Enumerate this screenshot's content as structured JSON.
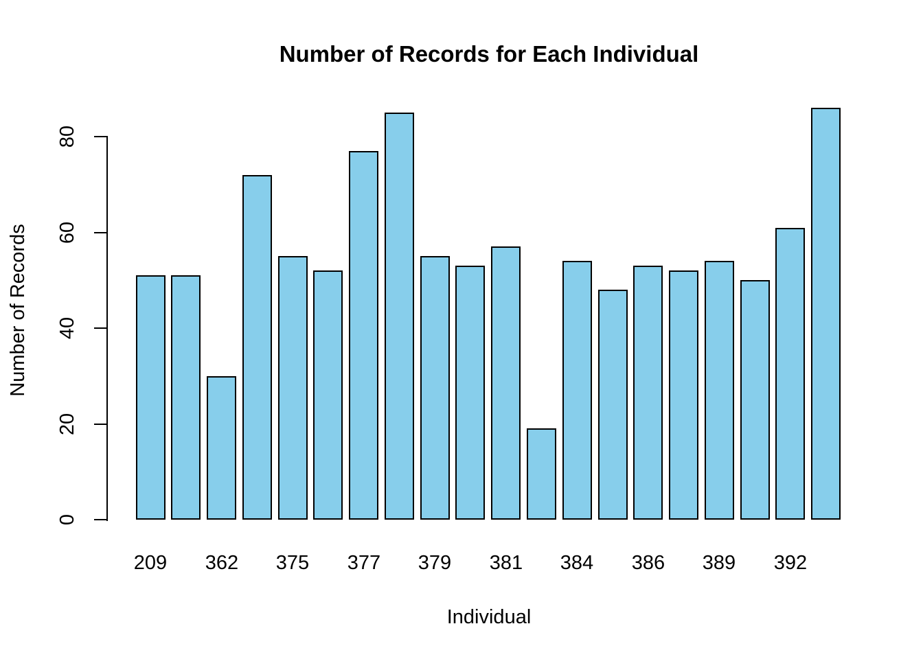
{
  "chart_data": {
    "type": "bar",
    "title": "Number of Records for Each Individual",
    "xlabel": "Individual",
    "ylabel": "Number of Records",
    "categories": [
      "209",
      "",
      "362",
      "",
      "375",
      "",
      "377",
      "",
      "379",
      "",
      "381",
      "",
      "384",
      "",
      "386",
      "",
      "389",
      "",
      "392",
      ""
    ],
    "visible_x_tick_labels": [
      "209",
      "362",
      "375",
      "377",
      "379",
      "381",
      "384",
      "386",
      "389",
      "392"
    ],
    "values": [
      51,
      51,
      30,
      72,
      55,
      52,
      77,
      85,
      55,
      53,
      57,
      19,
      54,
      48,
      53,
      52,
      54,
      50,
      61,
      86
    ],
    "y_ticks": [
      0,
      20,
      40,
      60,
      80
    ],
    "ylim": [
      0,
      86
    ],
    "grid": false,
    "legend": "none",
    "bar_fill": "#87CEEB",
    "bar_stroke": "#000000",
    "axis_color": "#000000",
    "text_color": "#000000",
    "background": "#FFFFFF"
  }
}
